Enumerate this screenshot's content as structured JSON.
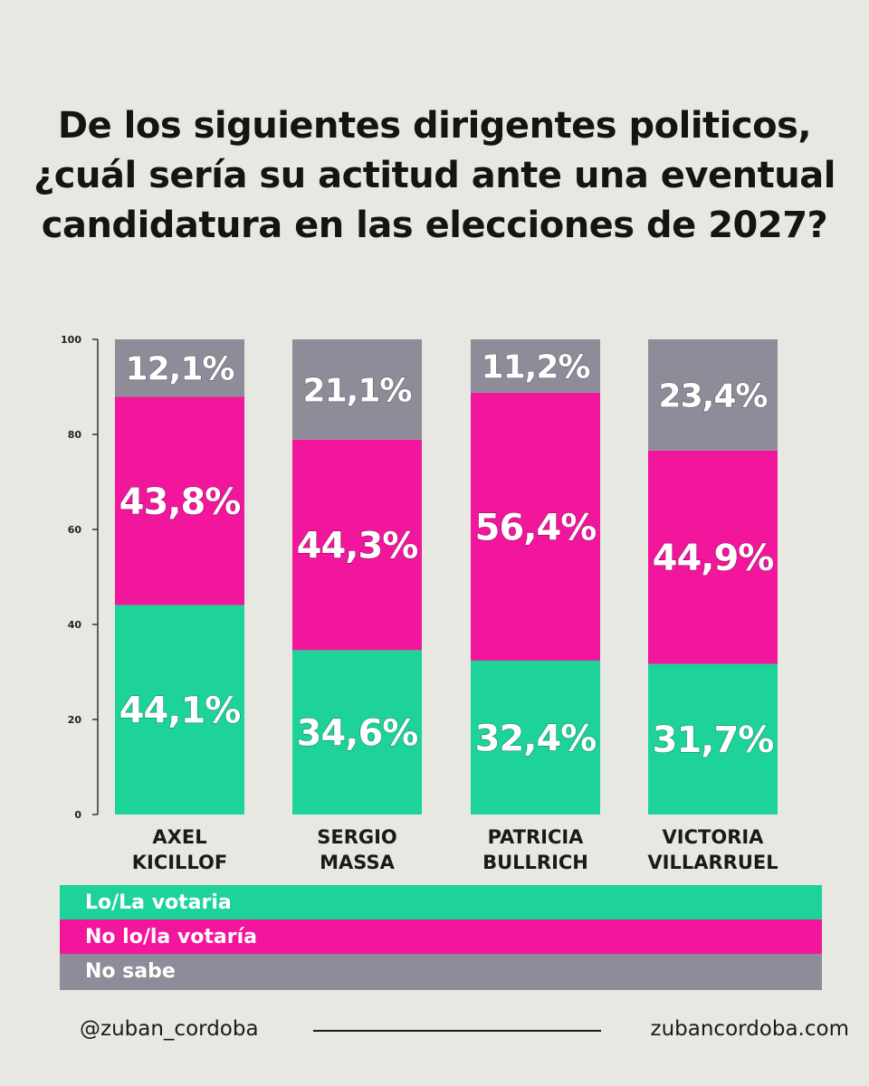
{
  "title_lines": [
    "De los siguientes dirigentes politicos,",
    "¿cuál sería su actitud ante una eventual",
    "candidatura en las elecciones de 2027?"
  ],
  "colors": {
    "lo_votaria": "#1dd39a",
    "no_votaria": "#f2169c",
    "no_sabe": "#8e8c98"
  },
  "chart_data": {
    "type": "bar",
    "stacked": true,
    "title": "De los siguientes dirigentes politicos, ¿cuál sería su actitud ante una eventual candidatura en las elecciones de 2027?",
    "categories": [
      [
        "AXEL",
        "KICILLOF"
      ],
      [
        "SERGIO",
        "MASSA"
      ],
      [
        "PATRICIA",
        "BULLRICH"
      ],
      [
        "VICTORIA",
        "VILLARRUEL"
      ]
    ],
    "series": [
      {
        "name": "Lo/La votaria",
        "values": [
          44.1,
          34.6,
          32.4,
          31.7
        ],
        "labels": [
          "44,1%",
          "34,6%",
          "32,4%",
          "31,7%"
        ]
      },
      {
        "name": "No lo/la votaría",
        "values": [
          43.8,
          44.3,
          56.4,
          44.9
        ],
        "labels": [
          "43,8%",
          "44,3%",
          "56,4%",
          "44,9%"
        ]
      },
      {
        "name": "No sabe",
        "values": [
          12.1,
          21.1,
          11.2,
          23.4
        ],
        "labels": [
          "12,1%",
          "21,1%",
          "11,2%",
          "23,4%"
        ]
      }
    ],
    "yticks": [
      "0",
      "20",
      "40",
      "60",
      "80",
      "100"
    ],
    "ylim": [
      0,
      100
    ],
    "grid": false,
    "legend_position": "bottom"
  },
  "legend": [
    "Lo/La votaria",
    "No lo/la votaría",
    "No sabe"
  ],
  "footer": {
    "handle": "@zuban_cordoba",
    "site": "zubancordoba.com"
  }
}
